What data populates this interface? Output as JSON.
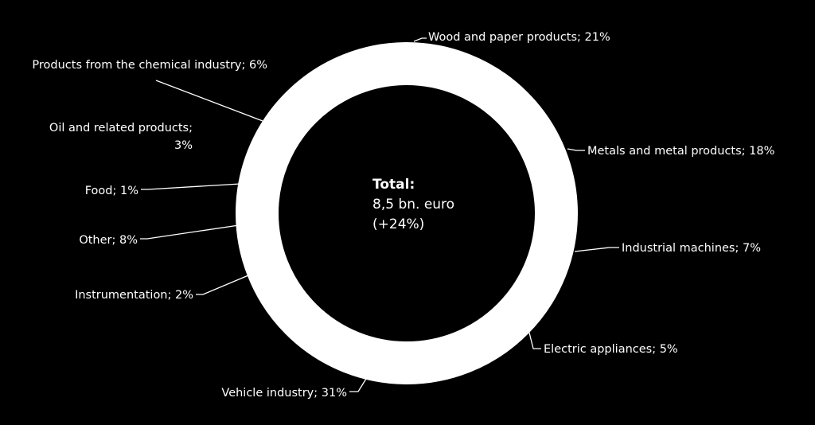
{
  "chart_data": {
    "type": "pie",
    "variant": "donut",
    "center": {
      "title": "Total:",
      "value": "8,5 bn. euro",
      "change": "(+24%)"
    },
    "slices": [
      {
        "label": "Wood and paper products; 21%",
        "name": "Wood and paper products",
        "value": 21
      },
      {
        "label": "Metals and metal products; 18%",
        "name": "Metals and metal products",
        "value": 18
      },
      {
        "label": "Industrial machines; 7%",
        "name": "Industrial machines",
        "value": 7
      },
      {
        "label": "Electric appliances; 5%",
        "name": "Electric appliances",
        "value": 5
      },
      {
        "label": "Vehicle industry; 31%",
        "name": "Vehicle industry",
        "value": 31
      },
      {
        "label": "Instrumentation; 2%",
        "name": "Instrumentation",
        "value": 2
      },
      {
        "label": "Other; 8%",
        "name": "Other",
        "value": 8
      },
      {
        "label": "Food; 1%",
        "name": "Food",
        "value": 1
      },
      {
        "label_lines": [
          "Oil and related products;",
          "3%"
        ],
        "name": "Oil and related products",
        "value": 3
      },
      {
        "label": "Products from the chemical industry; 6%",
        "name": "Products from the chemical industry",
        "value": 6
      }
    ],
    "ring_color": "#ffffff",
    "background": "#000000",
    "text_color": "#ffffff"
  }
}
